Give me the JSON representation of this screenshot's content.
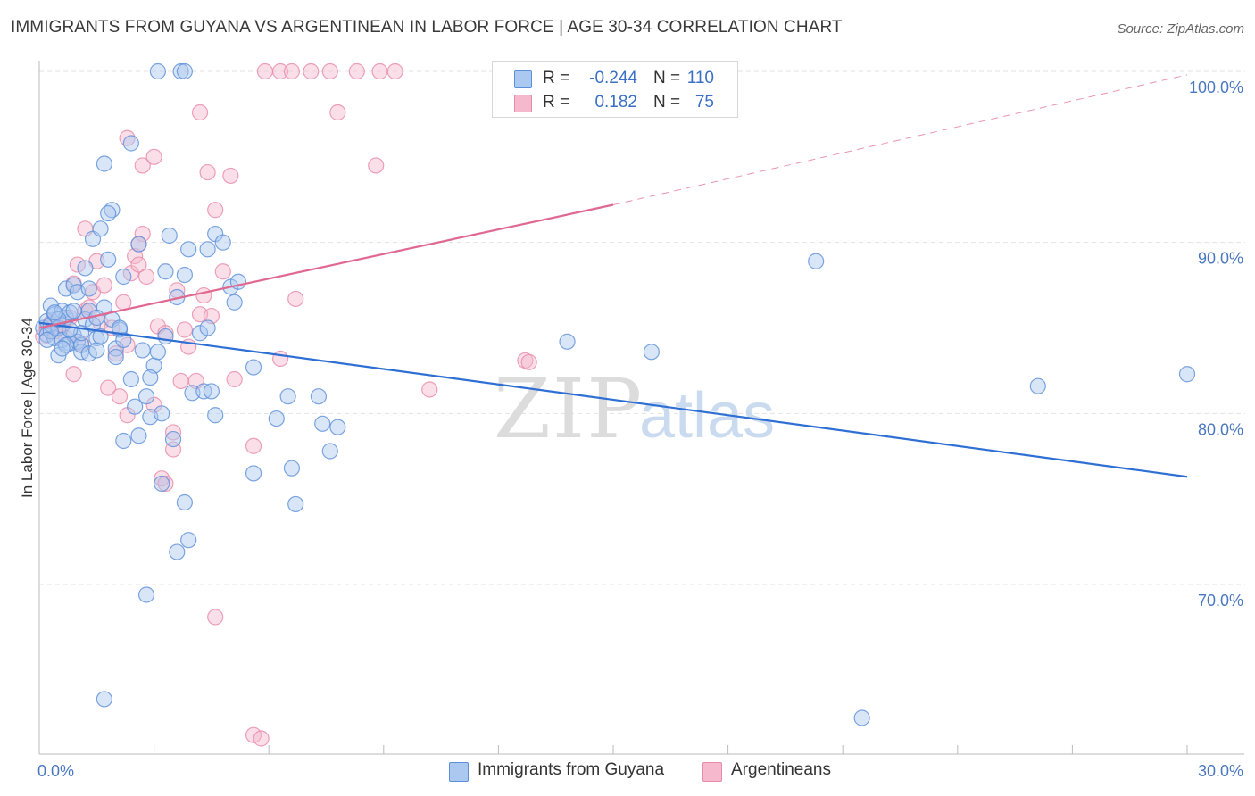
{
  "title": "IMMIGRANTS FROM GUYANA VS ARGENTINEAN IN LABOR FORCE | AGE 30-34 CORRELATION CHART",
  "source": "Source: ZipAtlas.com",
  "legend": {
    "rows": [
      {
        "r_label": "R =",
        "r_value": "-0.244",
        "n_label": "N =",
        "n_value": "110",
        "color": "#aac8f0"
      },
      {
        "r_label": "R =",
        "r_value": "0.182",
        "n_label": "N =",
        "n_value": "75",
        "color": "#f5b8cc"
      }
    ],
    "bottom": [
      "Immigrants from Guyana",
      "Argentineans"
    ]
  },
  "watermark": {
    "zip": "ZIP",
    "atlas": "atlas"
  },
  "chart_data": {
    "type": "scatter",
    "ylabel": "In Labor Force | Age 30-34",
    "xlim": [
      0.0,
      30.0
    ],
    "ylim": [
      60.0,
      102.0
    ],
    "x_tick_labels": [
      "0.0%",
      "30.0%"
    ],
    "y_ticks": [
      70.0,
      80.0,
      90.0,
      100.0
    ],
    "y_tick_labels": [
      "70.0%",
      "80.0%",
      "90.0%",
      "100.0%"
    ],
    "grid": true,
    "series": [
      {
        "name": "Immigrants from Guyana",
        "color": "#5b8fd8",
        "fill": "#aac8f0",
        "trend": {
          "x": [
            0.0,
            30.0
          ],
          "y": [
            85.3,
            76.3
          ],
          "color": "#2e6fd4"
        },
        "points": [
          [
            0.1,
            85.0
          ],
          [
            0.2,
            84.6
          ],
          [
            0.2,
            85.4
          ],
          [
            0.3,
            86.3
          ],
          [
            0.3,
            85.2
          ],
          [
            0.4,
            85.8
          ],
          [
            0.4,
            84.4
          ],
          [
            0.5,
            85.0
          ],
          [
            0.5,
            83.4
          ],
          [
            0.6,
            84.3
          ],
          [
            0.6,
            86.0
          ],
          [
            0.7,
            85.6
          ],
          [
            0.7,
            87.3
          ],
          [
            0.8,
            85.9
          ],
          [
            0.8,
            84.1
          ],
          [
            0.9,
            87.5
          ],
          [
            0.9,
            84.6
          ],
          [
            1.0,
            84.2
          ],
          [
            1.0,
            87.1
          ],
          [
            1.1,
            83.6
          ],
          [
            1.1,
            84.0
          ],
          [
            1.2,
            85.5
          ],
          [
            1.2,
            88.5
          ],
          [
            1.3,
            83.5
          ],
          [
            1.3,
            86.0
          ],
          [
            1.4,
            85.2
          ],
          [
            1.4,
            90.2
          ],
          [
            1.5,
            84.4
          ],
          [
            1.5,
            83.7
          ],
          [
            1.6,
            90.8
          ],
          [
            1.7,
            86.2
          ],
          [
            1.8,
            89.0
          ],
          [
            1.9,
            85.5
          ],
          [
            2.0,
            83.8
          ],
          [
            2.0,
            83.3
          ],
          [
            2.1,
            84.9
          ],
          [
            2.2,
            84.3
          ],
          [
            1.9,
            91.9
          ],
          [
            2.2,
            88.0
          ],
          [
            2.4,
            82.0
          ],
          [
            2.5,
            80.4
          ],
          [
            2.6,
            89.9
          ],
          [
            2.7,
            83.7
          ],
          [
            2.8,
            81.0
          ],
          [
            2.9,
            79.8
          ],
          [
            3.0,
            82.8
          ],
          [
            3.1,
            83.6
          ],
          [
            3.2,
            80.0
          ],
          [
            3.3,
            84.5
          ],
          [
            3.5,
            78.5
          ],
          [
            3.6,
            86.8
          ],
          [
            3.8,
            88.1
          ],
          [
            3.8,
            74.8
          ],
          [
            3.9,
            89.6
          ],
          [
            4.0,
            81.2
          ],
          [
            4.2,
            84.7
          ],
          [
            4.3,
            81.3
          ],
          [
            4.4,
            85.0
          ],
          [
            4.5,
            81.3
          ],
          [
            4.6,
            79.9
          ],
          [
            4.6,
            90.5
          ],
          [
            4.8,
            90.0
          ],
          [
            5.0,
            87.4
          ],
          [
            5.1,
            86.5
          ],
          [
            5.2,
            87.7
          ],
          [
            5.6,
            82.7
          ],
          [
            5.6,
            76.5
          ],
          [
            6.2,
            79.7
          ],
          [
            6.5,
            81.0
          ],
          [
            6.6,
            76.8
          ],
          [
            6.7,
            74.7
          ],
          [
            7.3,
            81.0
          ],
          [
            7.4,
            79.4
          ],
          [
            7.6,
            77.8
          ],
          [
            7.8,
            79.2
          ],
          [
            1.7,
            94.6
          ],
          [
            1.8,
            91.7
          ],
          [
            2.4,
            95.8
          ],
          [
            3.1,
            100.0
          ],
          [
            3.7,
            100.0
          ],
          [
            3.8,
            100.0
          ],
          [
            1.7,
            63.3
          ],
          [
            2.8,
            69.4
          ],
          [
            3.6,
            71.9
          ],
          [
            3.9,
            72.6
          ],
          [
            2.2,
            78.4
          ],
          [
            2.6,
            78.7
          ],
          [
            3.2,
            75.9
          ],
          [
            1.6,
            84.5
          ],
          [
            2.1,
            85.0
          ],
          [
            0.3,
            84.8
          ],
          [
            0.5,
            85.5
          ],
          [
            0.7,
            84.0
          ],
          [
            0.9,
            86.0
          ],
          [
            1.1,
            84.7
          ],
          [
            1.3,
            87.3
          ],
          [
            0.2,
            84.3
          ],
          [
            0.4,
            85.9
          ],
          [
            0.6,
            83.8
          ],
          [
            0.8,
            84.9
          ],
          [
            3.3,
            88.3
          ],
          [
            3.4,
            90.4
          ],
          [
            2.9,
            82.1
          ],
          [
            4.4,
            89.6
          ],
          [
            1.5,
            85.6
          ],
          [
            13.8,
            84.2
          ],
          [
            16.0,
            83.6
          ],
          [
            20.3,
            88.9
          ],
          [
            26.1,
            81.6
          ],
          [
            30.0,
            82.3
          ],
          [
            21.5,
            62.2
          ]
        ]
      },
      {
        "name": "Argentineans",
        "color": "#e88aa8",
        "fill": "#f5b8cc",
        "trend": {
          "x": [
            0.0,
            15.0
          ],
          "y": [
            85.0,
            92.2
          ],
          "dash_to": [
            30.0,
            99.8
          ],
          "color": "#e0688f"
        },
        "points": [
          [
            0.1,
            84.5
          ],
          [
            0.2,
            85.0
          ],
          [
            0.3,
            85.3
          ],
          [
            0.4,
            84.8
          ],
          [
            0.5,
            85.0
          ],
          [
            0.6,
            85.2
          ],
          [
            0.7,
            84.4
          ],
          [
            0.8,
            85.6
          ],
          [
            0.9,
            87.6
          ],
          [
            1.0,
            88.7
          ],
          [
            1.1,
            84.1
          ],
          [
            1.2,
            86.0
          ],
          [
            1.3,
            86.2
          ],
          [
            1.4,
            87.1
          ],
          [
            1.5,
            88.9
          ],
          [
            1.6,
            85.3
          ],
          [
            1.7,
            87.5
          ],
          [
            1.8,
            81.5
          ],
          [
            1.9,
            85.0
          ],
          [
            2.0,
            83.5
          ],
          [
            2.1,
            81.0
          ],
          [
            2.2,
            86.5
          ],
          [
            2.3,
            84.0
          ],
          [
            2.4,
            88.2
          ],
          [
            2.5,
            89.2
          ],
          [
            2.6,
            88.7
          ],
          [
            2.7,
            90.5
          ],
          [
            2.8,
            88.0
          ],
          [
            3.0,
            80.5
          ],
          [
            3.1,
            85.1
          ],
          [
            3.3,
            84.7
          ],
          [
            3.5,
            78.9
          ],
          [
            3.6,
            87.2
          ],
          [
            3.7,
            81.9
          ],
          [
            3.8,
            84.9
          ],
          [
            3.9,
            83.9
          ],
          [
            4.1,
            81.9
          ],
          [
            4.2,
            85.8
          ],
          [
            4.3,
            86.9
          ],
          [
            4.5,
            85.7
          ],
          [
            4.6,
            91.9
          ],
          [
            4.8,
            88.3
          ],
          [
            5.1,
            82.0
          ],
          [
            5.6,
            78.1
          ],
          [
            6.3,
            83.2
          ],
          [
            6.7,
            86.7
          ],
          [
            10.2,
            81.4
          ],
          [
            12.7,
            83.1
          ],
          [
            2.3,
            96.1
          ],
          [
            2.7,
            94.5
          ],
          [
            3.0,
            95.0
          ],
          [
            4.4,
            94.1
          ],
          [
            5.0,
            93.9
          ],
          [
            4.2,
            97.6
          ],
          [
            7.8,
            97.6
          ],
          [
            8.8,
            94.5
          ],
          [
            5.9,
            100.0
          ],
          [
            6.3,
            100.0
          ],
          [
            6.6,
            100.0
          ],
          [
            7.1,
            100.0
          ],
          [
            7.6,
            100.0
          ],
          [
            8.3,
            100.0
          ],
          [
            8.9,
            100.0
          ],
          [
            9.3,
            100.0
          ],
          [
            5.6,
            61.2
          ],
          [
            5.8,
            61.0
          ],
          [
            4.6,
            68.1
          ],
          [
            3.2,
            76.2
          ],
          [
            3.3,
            75.9
          ],
          [
            2.3,
            79.9
          ],
          [
            0.9,
            82.3
          ],
          [
            1.2,
            90.8
          ],
          [
            2.6,
            89.9
          ],
          [
            3.5,
            77.9
          ],
          [
            12.8,
            83.0
          ]
        ]
      }
    ]
  }
}
